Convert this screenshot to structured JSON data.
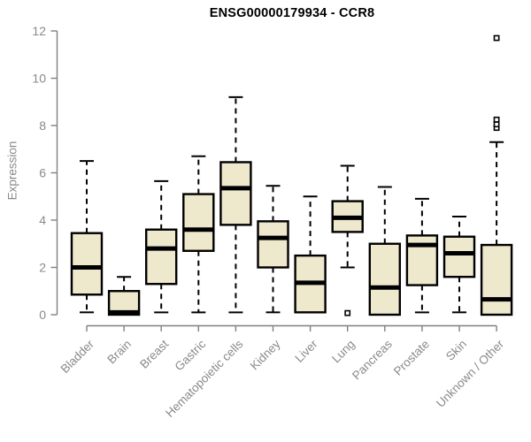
{
  "title": "ENSG00000179934 - CCR8",
  "style": {
    "background": "#ffffff",
    "box_fill": "#EEE8CD",
    "box_stroke": "#000000",
    "median_color": "#000000",
    "whisker_color": "#000000",
    "axis_color": "#808080",
    "tick_label_color": "#8a8a8a",
    "title_color": "#000000"
  },
  "chart_data": {
    "type": "box",
    "title": "ENSG00000179934 - CCR8",
    "xlabel": "",
    "ylabel": "Expression",
    "ylim": [
      0,
      12
    ],
    "yticks": [
      0,
      2,
      4,
      6,
      8,
      10,
      12
    ],
    "grid": false,
    "legend": "none",
    "categories": [
      "Bladder",
      "Brain",
      "Breast",
      "Gastric",
      "Hematopoietic cells",
      "Kidney",
      "Liver",
      "Lung",
      "Pancreas",
      "Prostate",
      "Skin",
      "Unknown / Other"
    ],
    "boxes": [
      {
        "category": "Bladder",
        "whisker_low": 0.1,
        "q1": 0.85,
        "median": 2.0,
        "q3": 3.45,
        "whisker_high": 6.5,
        "outliers": []
      },
      {
        "category": "Brain",
        "whisker_low": null,
        "q1": 0.0,
        "median": 0.1,
        "q3": 1.0,
        "whisker_high": 1.6,
        "outliers": []
      },
      {
        "category": "Breast",
        "whisker_low": 0.1,
        "q1": 1.3,
        "median": 2.8,
        "q3": 3.6,
        "whisker_high": 5.65,
        "outliers": []
      },
      {
        "category": "Gastric",
        "whisker_low": 0.1,
        "q1": 2.7,
        "median": 3.6,
        "q3": 5.1,
        "whisker_high": 6.7,
        "outliers": []
      },
      {
        "category": "Hematopoietic cells",
        "whisker_low": 0.1,
        "q1": 3.8,
        "median": 5.35,
        "q3": 6.45,
        "whisker_high": 9.2,
        "outliers": []
      },
      {
        "category": "Kidney",
        "whisker_low": 0.1,
        "q1": 2.0,
        "median": 3.25,
        "q3": 3.95,
        "whisker_high": 5.45,
        "outliers": []
      },
      {
        "category": "Liver",
        "whisker_low": null,
        "q1": 0.1,
        "median": 1.35,
        "q3": 2.5,
        "whisker_high": 5.0,
        "outliers": []
      },
      {
        "category": "Lung",
        "whisker_low": 2.0,
        "q1": 3.5,
        "median": 4.1,
        "q3": 4.8,
        "whisker_high": 6.3,
        "outliers": [
          0.07
        ]
      },
      {
        "category": "Pancreas",
        "whisker_low": null,
        "q1": 0.0,
        "median": 1.15,
        "q3": 3.0,
        "whisker_high": 5.4,
        "outliers": []
      },
      {
        "category": "Prostate",
        "whisker_low": 0.1,
        "q1": 1.25,
        "median": 2.95,
        "q3": 3.35,
        "whisker_high": 4.9,
        "outliers": []
      },
      {
        "category": "Skin",
        "whisker_low": 0.1,
        "q1": 1.6,
        "median": 2.6,
        "q3": 3.3,
        "whisker_high": 4.15,
        "outliers": []
      },
      {
        "category": "Unknown / Other",
        "whisker_low": null,
        "q1": 0.0,
        "median": 0.65,
        "q3": 2.95,
        "whisker_high": 7.3,
        "outliers": [
          7.9,
          8.05,
          8.25,
          11.7
        ]
      }
    ]
  }
}
